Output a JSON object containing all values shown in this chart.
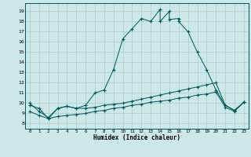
{
  "xlabel": "Humidex (Indice chaleur)",
  "background_color": "#cce8e8",
  "grid_color": "#aacccc",
  "line_color": "#005555",
  "x_ticks": [
    0,
    1,
    2,
    3,
    4,
    5,
    6,
    7,
    8,
    9,
    10,
    11,
    12,
    13,
    14,
    15,
    16,
    17,
    18,
    19,
    20,
    21,
    22,
    23
  ],
  "y_ticks": [
    8,
    9,
    10,
    11,
    12,
    13,
    14,
    15,
    16,
    17,
    18,
    19
  ],
  "xlim": [
    -0.5,
    23.5
  ],
  "ylim": [
    7.5,
    19.8
  ],
  "series1_x": [
    0,
    1,
    2,
    3,
    4,
    5,
    6,
    7,
    8,
    9,
    10,
    11,
    12,
    13,
    14,
    14,
    15,
    15,
    16,
    16,
    17,
    18,
    19,
    20,
    21,
    22,
    23
  ],
  "series1_y": [
    10.0,
    9.2,
    8.6,
    9.5,
    9.7,
    9.5,
    9.8,
    11.0,
    11.3,
    13.3,
    16.3,
    17.3,
    18.3,
    18.0,
    19.2,
    18.0,
    19.0,
    18.2,
    18.3,
    18.0,
    17.0,
    15.0,
    13.3,
    11.3,
    9.8,
    9.3,
    10.1
  ],
  "series2_x": [
    0,
    1,
    2,
    3,
    4,
    5,
    6,
    7,
    8,
    9,
    10,
    11,
    12,
    13,
    14,
    15,
    16,
    17,
    18,
    19,
    20,
    21,
    22,
    23
  ],
  "series2_y": [
    9.8,
    9.5,
    8.5,
    9.5,
    9.7,
    9.5,
    9.5,
    9.6,
    9.8,
    9.9,
    10.0,
    10.2,
    10.4,
    10.6,
    10.8,
    11.0,
    11.2,
    11.4,
    11.6,
    11.8,
    12.0,
    9.8,
    9.3,
    10.1
  ],
  "series3_x": [
    0,
    1,
    2,
    3,
    4,
    5,
    6,
    7,
    8,
    9,
    10,
    11,
    12,
    13,
    14,
    15,
    16,
    17,
    18,
    19,
    20,
    21,
    22,
    23
  ],
  "series3_y": [
    9.2,
    8.8,
    8.5,
    8.7,
    8.8,
    8.9,
    9.0,
    9.2,
    9.3,
    9.5,
    9.6,
    9.8,
    9.9,
    10.1,
    10.2,
    10.3,
    10.5,
    10.6,
    10.8,
    10.9,
    11.1,
    9.6,
    9.2,
    10.1
  ]
}
